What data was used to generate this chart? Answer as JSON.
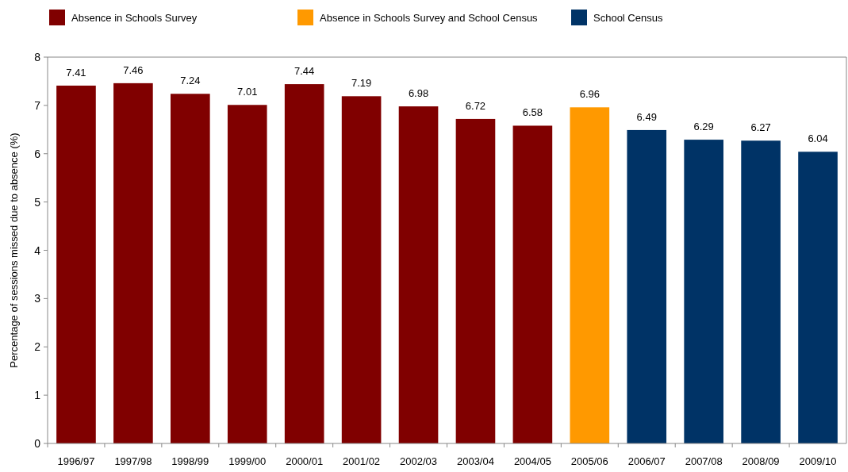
{
  "chart_data": {
    "type": "bar",
    "ylabel": "Percentage of sessions  missed due to absence (%)",
    "categories": [
      "1996/97",
      "1997/98",
      "1998/99",
      "1999/00",
      "2000/01",
      "2001/02",
      "2002/03",
      "2003/04",
      "2004/05",
      "2005/06",
      "2006/07",
      "2007/08",
      "2008/09",
      "2009/10"
    ],
    "series": [
      {
        "name": "Absence in Schools Survey",
        "color": "#800000",
        "values": [
          7.41,
          7.46,
          7.24,
          7.01,
          7.44,
          7.19,
          6.98,
          6.72,
          6.58,
          null,
          null,
          null,
          null,
          null
        ]
      },
      {
        "name": "Absence in Schools Survey and School Census",
        "color": "#ff9900",
        "values": [
          null,
          null,
          null,
          null,
          null,
          null,
          null,
          null,
          null,
          6.96,
          null,
          null,
          null,
          null
        ]
      },
      {
        "name": "School Census",
        "color": "#003366",
        "values": [
          null,
          null,
          null,
          null,
          null,
          null,
          null,
          null,
          null,
          null,
          6.49,
          6.29,
          6.27,
          6.04
        ]
      }
    ],
    "ylim": [
      0,
      8
    ],
    "yticks": [
      0,
      1,
      2,
      3,
      4,
      5,
      6,
      7,
      8
    ],
    "data_labels": true,
    "legend": "top",
    "grid": false
  }
}
